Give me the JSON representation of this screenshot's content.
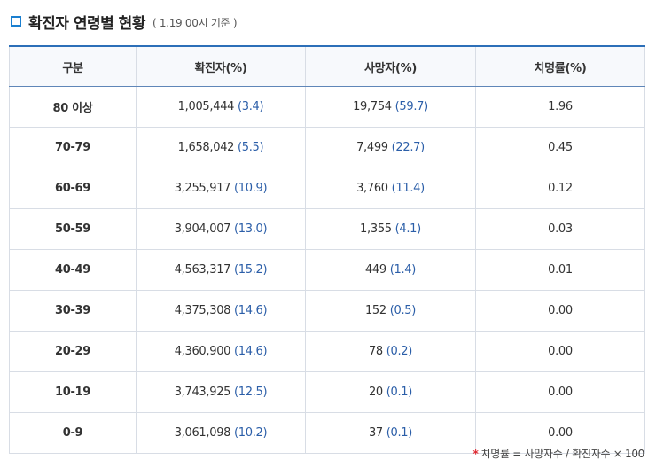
{
  "header": {
    "title": "확진자 연령별 현황",
    "subtitle": "( 1.19 00시 기준 )"
  },
  "columns": [
    "구분",
    "확진자(%)",
    "사망자(%)",
    "치명률(%)"
  ],
  "rows": [
    {
      "age": "80 이상",
      "cases": "1,005,444",
      "cases_pct": "(3.4)",
      "deaths": "19,754",
      "deaths_pct": "(59.7)",
      "rate": "1.96"
    },
    {
      "age": "70-79",
      "cases": "1,658,042",
      "cases_pct": "(5.5)",
      "deaths": "7,499",
      "deaths_pct": "(22.7)",
      "rate": "0.45"
    },
    {
      "age": "60-69",
      "cases": "3,255,917",
      "cases_pct": "(10.9)",
      "deaths": "3,760",
      "deaths_pct": "(11.4)",
      "rate": "0.12"
    },
    {
      "age": "50-59",
      "cases": "3,904,007",
      "cases_pct": "(13.0)",
      "deaths": "1,355",
      "deaths_pct": "(4.1)",
      "rate": "0.03"
    },
    {
      "age": "40-49",
      "cases": "4,563,317",
      "cases_pct": "(15.2)",
      "deaths": "449",
      "deaths_pct": "(1.4)",
      "rate": "0.01"
    },
    {
      "age": "30-39",
      "cases": "4,375,308",
      "cases_pct": "(14.6)",
      "deaths": "152",
      "deaths_pct": "(0.5)",
      "rate": "0.00"
    },
    {
      "age": "20-29",
      "cases": "4,360,900",
      "cases_pct": "(14.6)",
      "deaths": "78",
      "deaths_pct": "(0.2)",
      "rate": "0.00"
    },
    {
      "age": "10-19",
      "cases": "3,743,925",
      "cases_pct": "(12.5)",
      "deaths": "20",
      "deaths_pct": "(0.1)",
      "rate": "0.00"
    },
    {
      "age": "0-9",
      "cases": "3,061,098",
      "cases_pct": "(10.2)",
      "deaths": "37",
      "deaths_pct": "(0.1)",
      "rate": "0.00"
    }
  ],
  "footnote": {
    "marker": "*",
    "text": "치명률 = 사망자수 / 확진자수 × 100"
  },
  "colors": {
    "accent": "#2c6fb8",
    "icon": "#1a7fd0",
    "value_blue": "#2b5ea8",
    "star_red": "#e0262e"
  },
  "icons": {
    "title_icon": "square-bullet-icon"
  }
}
